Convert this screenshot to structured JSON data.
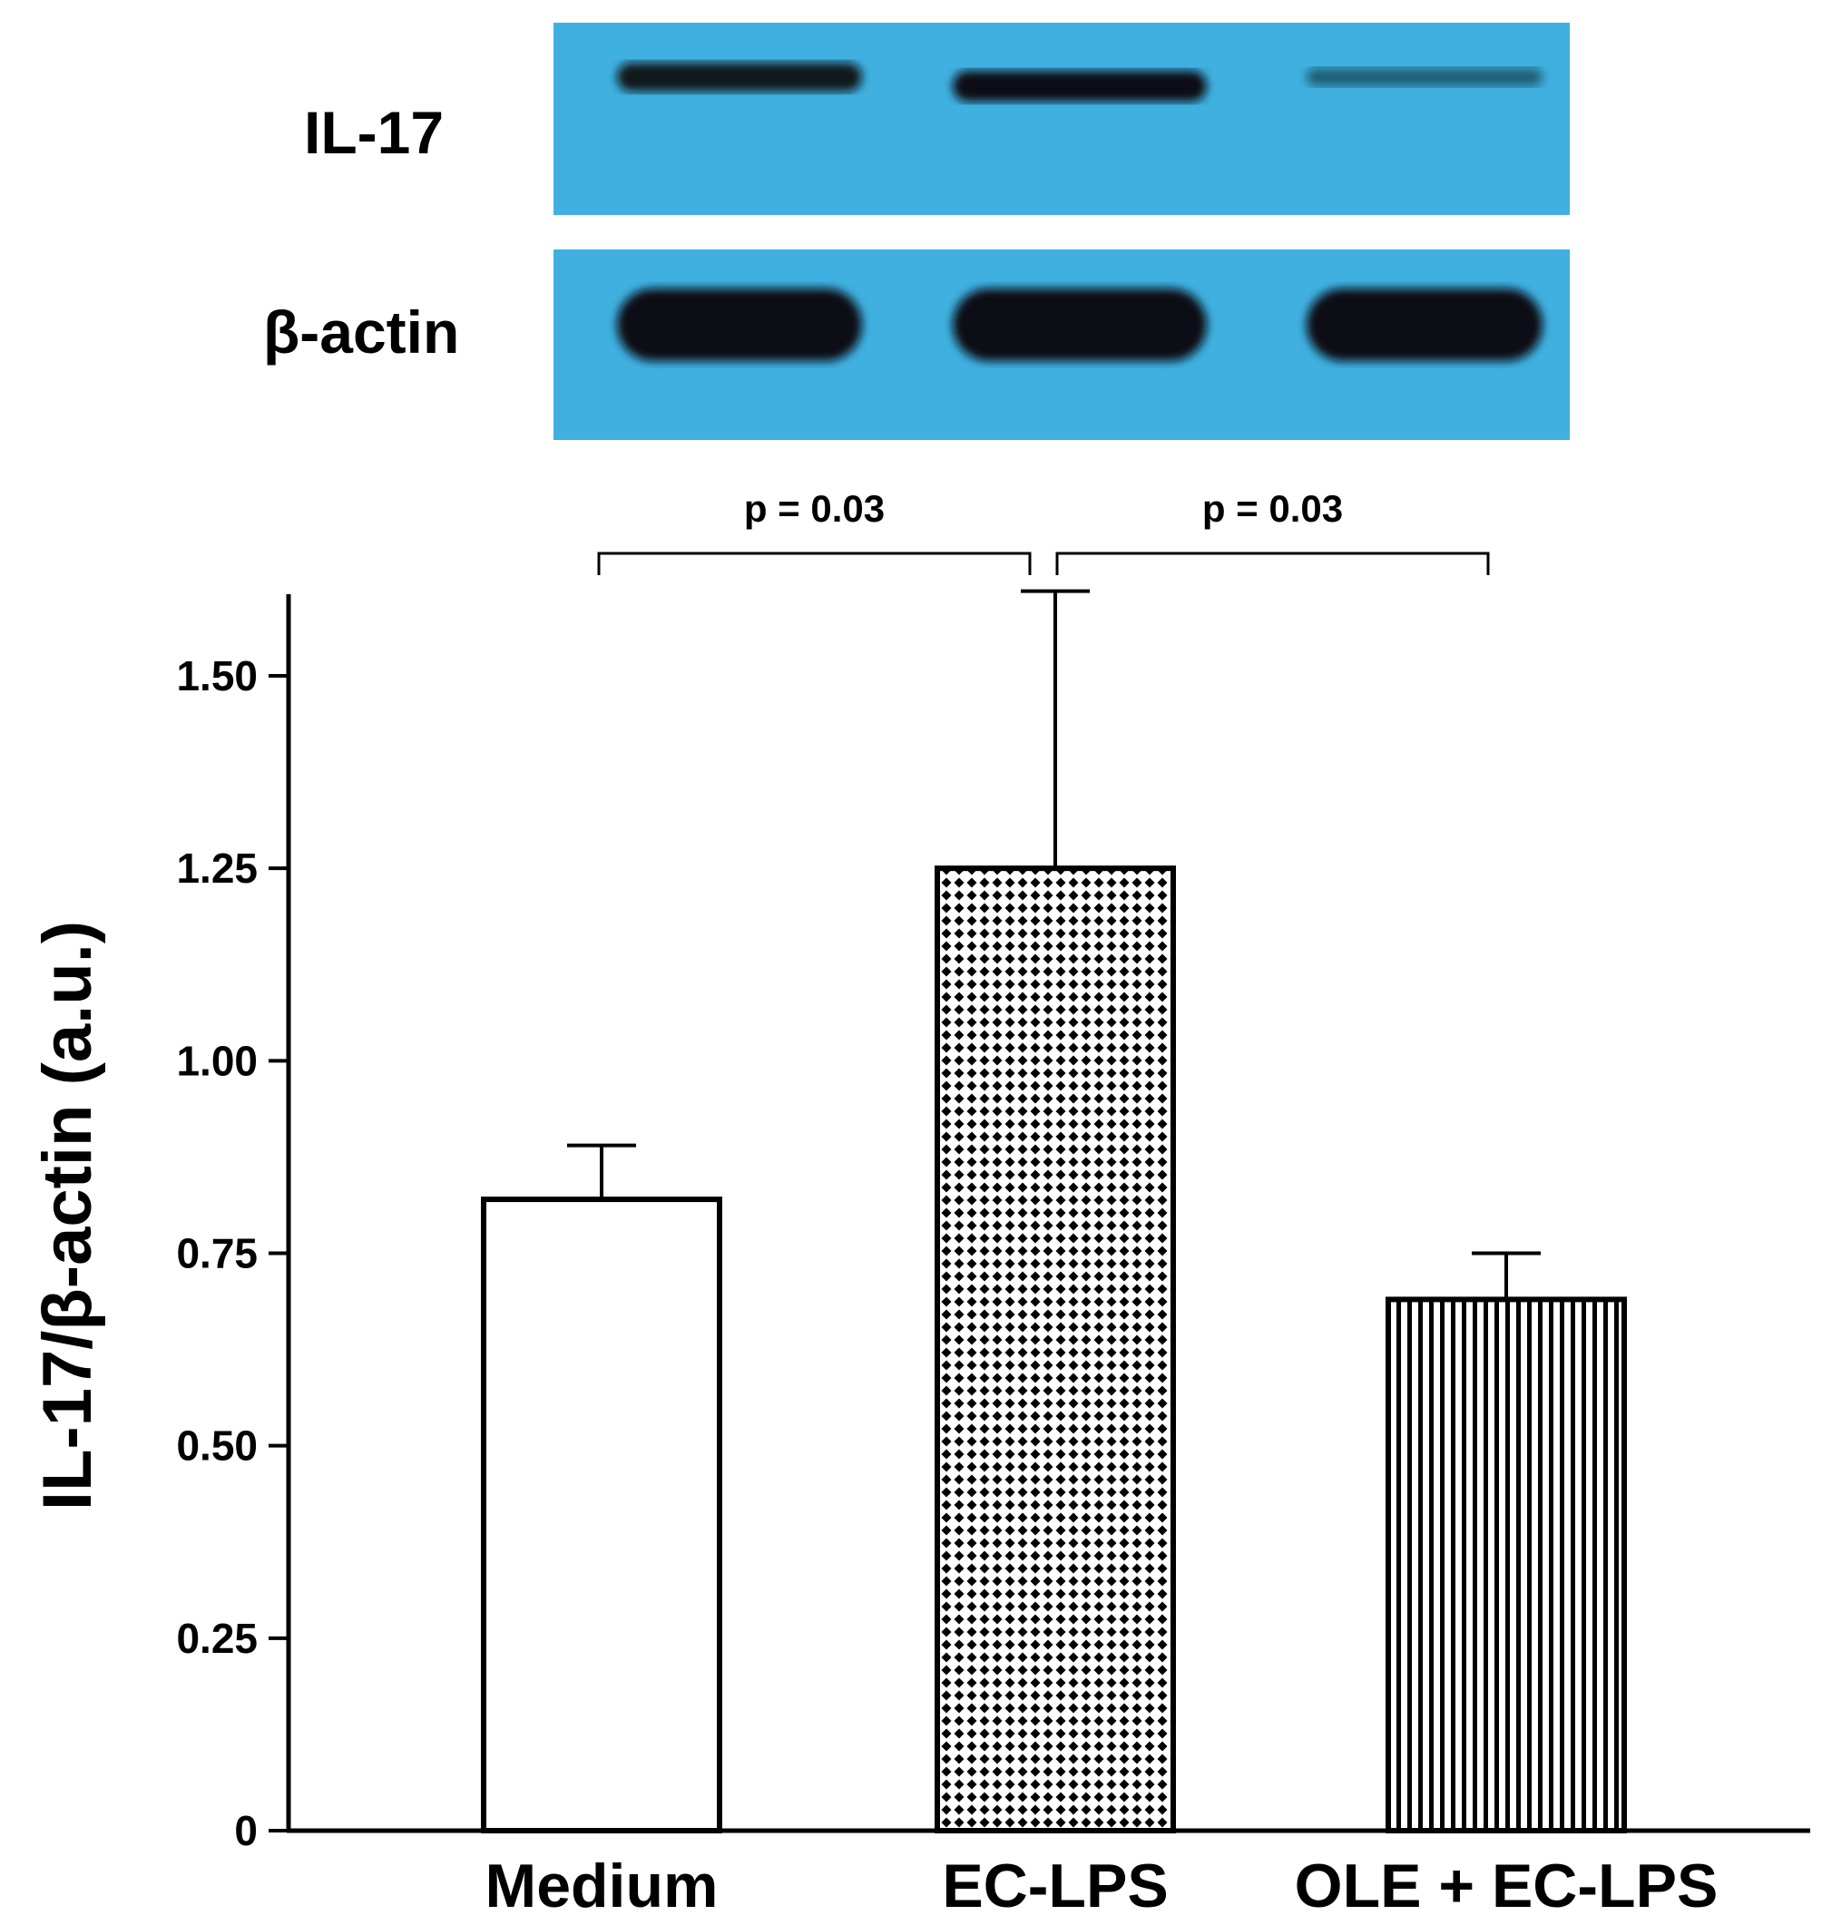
{
  "blot": {
    "background": "#3fb0e0",
    "band_color": "#0a0f12",
    "rows": [
      {
        "label": "IL-17",
        "band_intensity": [
          0.9,
          1.0,
          0.35
        ]
      },
      {
        "label": "β-actin",
        "band_intensity": [
          1.0,
          1.0,
          1.0
        ]
      }
    ]
  },
  "chart_data": {
    "type": "bar",
    "categories": [
      "Medium",
      "EC-LPS",
      "OLE + EC-LPS"
    ],
    "series": [
      {
        "values": [
          0.82,
          1.25,
          0.69
        ],
        "errors": [
          0.07,
          0.36,
          0.06
        ],
        "patterns": [
          "none",
          "diamond-dots",
          "vertical-stripes"
        ]
      }
    ],
    "ylabel": "IL-17/β-actin (a.u.)",
    "xlabel": "",
    "ylim": [
      0,
      1.6
    ],
    "yticks": [
      0,
      0.25,
      0.5,
      0.75,
      1.0,
      1.25,
      1.5
    ],
    "ytick_labels": [
      "0",
      "0.25",
      "0.50",
      "0.75",
      "1.00",
      "1.25",
      "1.50"
    ],
    "grid": false,
    "annotations": [
      {
        "text": "p = 0.03",
        "from": "Medium",
        "to": "EC-LPS"
      },
      {
        "text": "p = 0.03",
        "from": "EC-LPS",
        "to": "OLE + EC-LPS"
      }
    ]
  }
}
